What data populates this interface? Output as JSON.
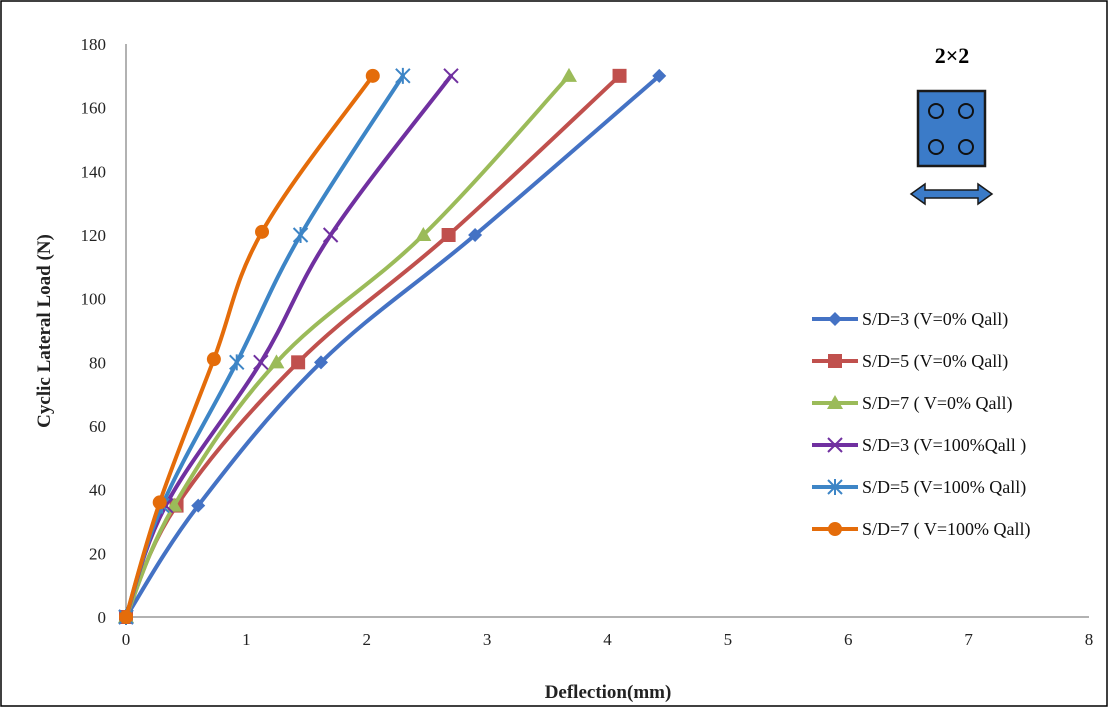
{
  "chart_data": {
    "type": "line",
    "title": "",
    "xlabel": "Deflection(mm)",
    "ylabel": "Cyclic Lateral Load (N)",
    "xlim": [
      0,
      8
    ],
    "ylim": [
      0,
      180
    ],
    "xticks": [
      0,
      1,
      2,
      3,
      4,
      5,
      6,
      7,
      8
    ],
    "yticks": [
      0,
      20,
      40,
      60,
      80,
      100,
      120,
      140,
      160,
      180
    ],
    "grid": false,
    "legend_position": "right",
    "inset_label": "2×2",
    "series": [
      {
        "name": "S/D=3 (V=0% Qall)",
        "color": "#4472C4",
        "marker": "diamond",
        "x": [
          0,
          0.6,
          1.62,
          2.9,
          4.43
        ],
        "y": [
          0,
          35,
          80,
          120,
          170
        ]
      },
      {
        "name": "S/D=5 (V=0% Qall)",
        "color": "#C0504D",
        "marker": "square",
        "x": [
          0,
          0.42,
          1.43,
          2.68,
          4.1
        ],
        "y": [
          0,
          35,
          80,
          120,
          170
        ]
      },
      {
        "name": "S/D=7 ( V=0% Qall)",
        "color": "#9BBB59",
        "marker": "triangle",
        "x": [
          0,
          0.4,
          1.25,
          2.47,
          3.68
        ],
        "y": [
          0,
          35,
          80,
          120,
          170
        ]
      },
      {
        "name": "S/D=3 (V=100%Qall )",
        "color": "#7030A0",
        "marker": "x",
        "x": [
          0,
          0.33,
          1.12,
          1.7,
          2.7
        ],
        "y": [
          0,
          35,
          80,
          120,
          170
        ]
      },
      {
        "name": "S/D=5 (V=100% Qall)",
        "color": "#3D85C6",
        "marker": "star",
        "x": [
          0,
          0.3,
          0.92,
          1.45,
          2.3
        ],
        "y": [
          0,
          35,
          80,
          120,
          170
        ]
      },
      {
        "name": "S/D=7 ( V=100% Qall)",
        "color": "#E46C0A",
        "marker": "circle",
        "x": [
          0,
          0.28,
          0.73,
          1.13,
          2.05
        ],
        "y": [
          0,
          36,
          81,
          121,
          170
        ]
      }
    ]
  }
}
